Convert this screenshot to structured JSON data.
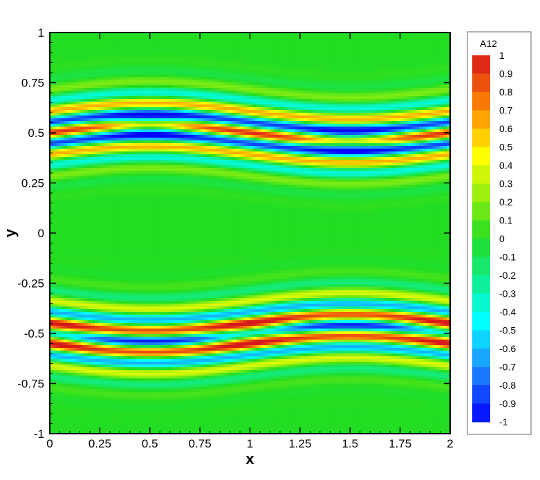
{
  "chart_data": {
    "type": "heatmap",
    "xlabel": "x",
    "ylabel": "y",
    "xlim": [
      0,
      2
    ],
    "ylim": [
      -1,
      1
    ],
    "x_ticks": [
      "0",
      "0.25",
      "0.5",
      "0.75",
      "1",
      "1.25",
      "1.5",
      "1.75",
      "2"
    ],
    "y_ticks": [
      "-1",
      "-0.75",
      "-0.5",
      "-0.25",
      "0",
      "0.25",
      "0.5",
      "0.75",
      "1"
    ],
    "legend": {
      "title": "A12",
      "placement": "right",
      "levels": [
        "1",
        "0.9",
        "0.8",
        "0.7",
        "0.6",
        "0.5",
        "0.4",
        "0.3",
        "0.2",
        "0.1",
        "0",
        "-0.1",
        "-0.2",
        "-0.3",
        "-0.4",
        "-0.5",
        "-0.6",
        "-0.7",
        "-0.8",
        "-0.9",
        "-1"
      ]
    },
    "value_range": [
      -1,
      1
    ],
    "colors": {
      "max": "#d7191c",
      "high": "#ff8c00",
      "mid_high": "#ffff00",
      "zero": "#22dd22",
      "mid_low": "#00ffff",
      "low": "#1e90ff",
      "min": "#0000ff"
    },
    "bands": [
      {
        "center_y": 0.5,
        "polarity": 1
      },
      {
        "center_y": -0.5,
        "polarity": -1
      }
    ]
  }
}
